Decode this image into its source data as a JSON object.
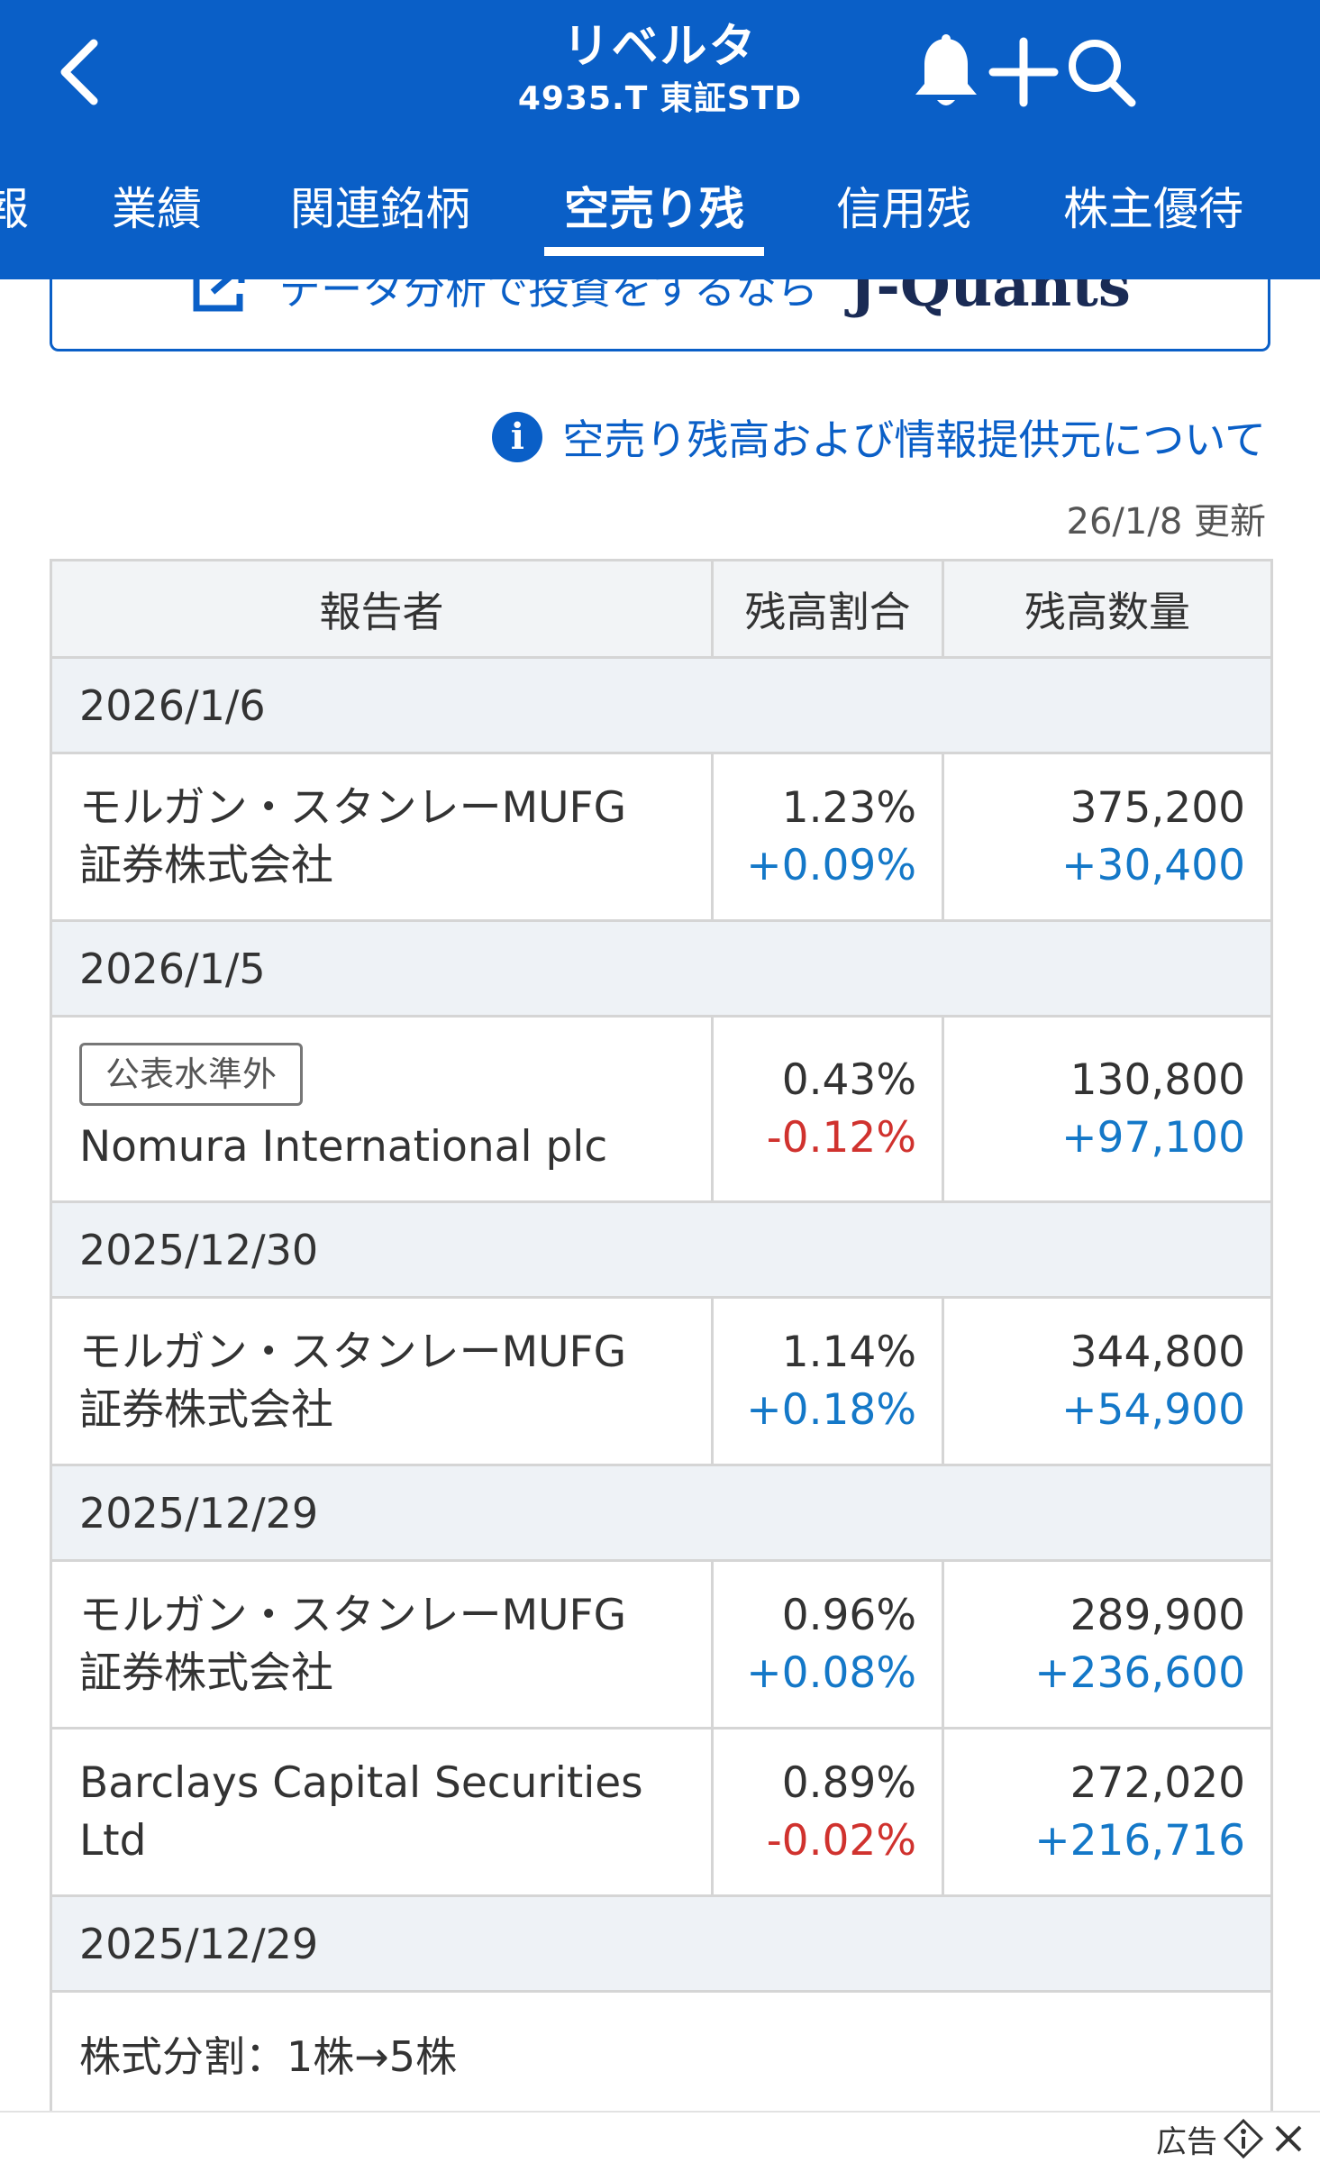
{
  "header": {
    "title": "リベルタ",
    "subtitle": "4935.T 東証STD",
    "icons": [
      "back-icon",
      "bell-icon",
      "plus-icon",
      "search-icon"
    ]
  },
  "tabs": [
    {
      "label": "報"
    },
    {
      "label": "業績"
    },
    {
      "label": "関連銘柄"
    },
    {
      "label": "空売り残",
      "active": true
    },
    {
      "label": "信用残"
    },
    {
      "label": "株主優待"
    }
  ],
  "banner": {
    "text": "データ分析で投資をするなら",
    "brand": "J-Quants"
  },
  "info": {
    "link": "空売り残高および情報提供元について",
    "updated": "26/1/8 更新"
  },
  "table": {
    "headers": [
      "報告者",
      "残高割合",
      "残高数量"
    ],
    "groups": [
      {
        "date": "2026/1/6",
        "rows": [
          {
            "reporter": [
              "モルガン・スタンレーMUFG",
              "証券株式会社"
            ],
            "ratio": "1.23%",
            "ratio_change": "+0.09%",
            "qty": "375,200",
            "qty_change": "+30,400"
          }
        ]
      },
      {
        "date": "2026/1/5",
        "rows": [
          {
            "badge": "公表水準外",
            "reporter": [
              "Nomura International plc"
            ],
            "ratio": "0.43%",
            "ratio_change": "-0.12%",
            "qty": "130,800",
            "qty_change": "+97,100"
          }
        ]
      },
      {
        "date": "2025/12/30",
        "rows": [
          {
            "reporter": [
              "モルガン・スタンレーMUFG",
              "証券株式会社"
            ],
            "ratio": "1.14%",
            "ratio_change": "+0.18%",
            "qty": "344,800",
            "qty_change": "+54,900"
          }
        ]
      },
      {
        "date": "2025/12/29",
        "rows": [
          {
            "reporter": [
              "モルガン・スタンレーMUFG",
              "証券株式会社"
            ],
            "ratio": "0.96%",
            "ratio_change": "+0.08%",
            "qty": "289,900",
            "qty_change": "+236,600"
          },
          {
            "reporter": [
              "Barclays Capital Securities",
              "Ltd"
            ],
            "ratio": "0.89%",
            "ratio_change": "-0.02%",
            "qty": "272,020",
            "qty_change": "+216,716"
          }
        ]
      }
    ],
    "split": {
      "date": "2025/12/29",
      "text": "株式分割：1株→5株"
    }
  },
  "ad": {
    "label": "広告"
  },
  "colors": {
    "brand_blue": "#0a5fc7",
    "positive": "#1478c8",
    "negative": "#d0322e"
  }
}
